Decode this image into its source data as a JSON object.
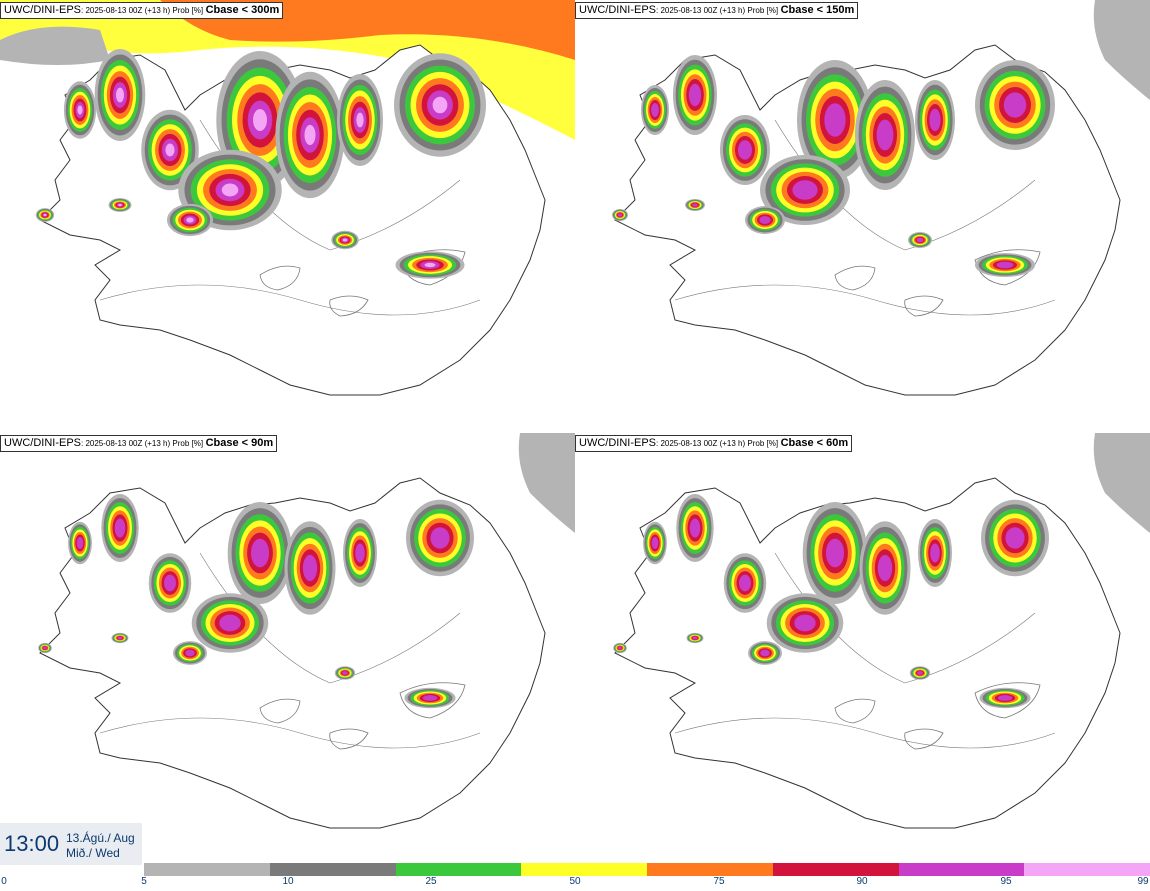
{
  "panels": [
    {
      "model": "UWC/DINI-EPS",
      "run": ": 2025-08-13 00Z (+13 h) Prob [%]",
      "field": "Cbase < 300m",
      "intensity": "high"
    },
    {
      "model": "UWC/DINI-EPS",
      "run": ": 2025-08-13 00Z (+13 h) Prob [%]",
      "field": "Cbase < 150m",
      "intensity": "mid"
    },
    {
      "model": "UWC/DINI-EPS",
      "run": ": 2025-08-13 00Z (+13 h) Prob [%]",
      "field": "Cbase < 90m",
      "intensity": "low"
    },
    {
      "model": "UWC/DINI-EPS",
      "run": ": 2025-08-13 00Z (+13 h) Prob [%]",
      "field": "Cbase < 60m",
      "intensity": "low"
    }
  ],
  "valid_time": {
    "time": "13:00",
    "date_line1": "13.Ágú./ Aug",
    "date_line2": "Mið./ Wed"
  },
  "legend": {
    "ticks": [
      "0",
      "5",
      "10",
      "25",
      "50",
      "75",
      "90",
      "95",
      "99"
    ],
    "colors": [
      "#b4b4b4",
      "#7a7a7a",
      "#3cc83c",
      "#ffff28",
      "#ff7a1e",
      "#d2143c",
      "#c83cc8",
      "#f5a5f5"
    ]
  },
  "map_colors": {
    "land_outline": "#333333",
    "rivers": "#777777"
  }
}
